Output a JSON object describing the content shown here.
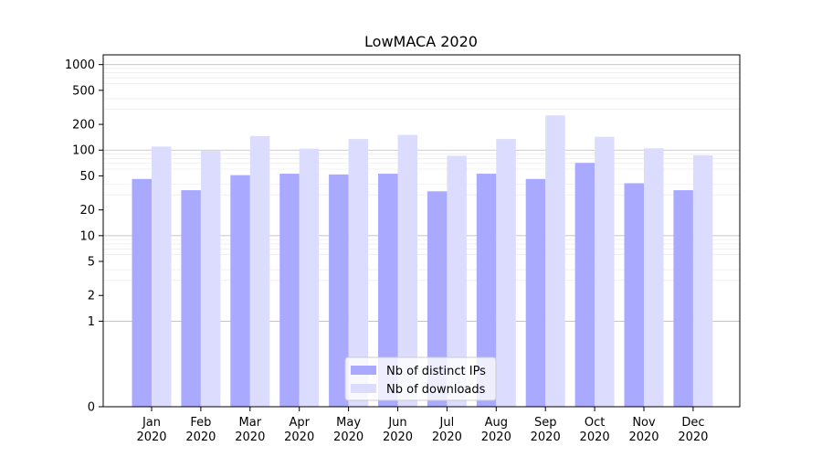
{
  "chart_data": {
    "type": "bar",
    "title": "LowMACA 2020",
    "xlabel": "",
    "ylabel": "",
    "y_scale": "symlog",
    "ylim": [
      0,
      1300
    ],
    "y_ticks": [
      0,
      1,
      2,
      5,
      10,
      20,
      50,
      100,
      200,
      500,
      1000
    ],
    "categories": [
      "Jan\n2020",
      "Feb\n2020",
      "Mar\n2020",
      "Apr\n2020",
      "May\n2020",
      "Jun\n2020",
      "Jul\n2020",
      "Aug\n2020",
      "Sep\n2020",
      "Oct\n2020",
      "Nov\n2020",
      "Dec\n2020"
    ],
    "category_lines": [
      [
        "Jan",
        "2020"
      ],
      [
        "Feb",
        "2020"
      ],
      [
        "Mar",
        "2020"
      ],
      [
        "Apr",
        "2020"
      ],
      [
        "May",
        "2020"
      ],
      [
        "Jun",
        "2020"
      ],
      [
        "Jul",
        "2020"
      ],
      [
        "Aug",
        "2020"
      ],
      [
        "Sep",
        "2020"
      ],
      [
        "Oct",
        "2020"
      ],
      [
        "Nov",
        "2020"
      ],
      [
        "Dec",
        "2020"
      ]
    ],
    "series": [
      {
        "name": "Nb of distinct IPs",
        "color": "#a9a9ff",
        "values": [
          46,
          34,
          51,
          53,
          52,
          53,
          33,
          53,
          46,
          71,
          41,
          34
        ]
      },
      {
        "name": "Nb of downloads",
        "color": "#dcdcff",
        "values": [
          110,
          98,
          146,
          104,
          135,
          151,
          86,
          135,
          255,
          143,
          105,
          87
        ]
      }
    ],
    "grid": true,
    "legend_position": "bottom-center"
  }
}
